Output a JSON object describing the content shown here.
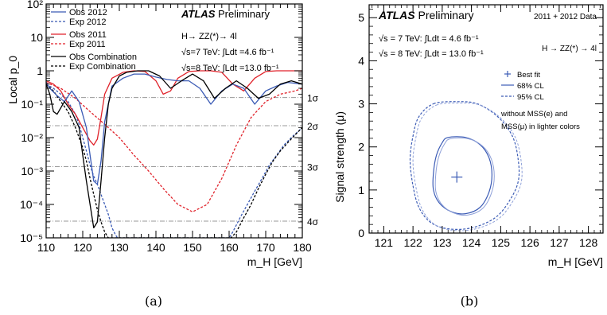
{
  "panels": [
    {
      "caption": "(a)",
      "title_bold": "ATLAS",
      "title_rest": " Preliminary",
      "channel": "H→ ZZ(*)→ 4l",
      "lumi": [
        "√s=7 TeV: ∫Ldt =4.6 fb⁻¹",
        "√s=8 TeV: ∫Ldt =13.0 fb⁻¹"
      ],
      "xlabel": "m_H [GeV]",
      "ylabel": "Local p_0",
      "xticks": [
        "110",
        "120",
        "130",
        "140",
        "150",
        "160",
        "170",
        "180"
      ],
      "yticks": [
        "10⁻⁵",
        "10⁻⁴",
        "10⁻³",
        "10⁻²",
        "10⁻¹",
        "1",
        "10",
        "10²"
      ],
      "sigma_labels": [
        "1σ",
        "2σ",
        "3σ",
        "4σ"
      ]
    },
    {
      "caption": "(b)",
      "title_bold": "ATLAS",
      "title_rest": " Preliminary",
      "dataset": "2011 + 2012 Data",
      "channel": "H → ZZ(*) → 4l",
      "lumi": [
        "√s = 7 TeV: ∫Ldt = 4.6 fb⁻¹",
        "√s = 8 TeV: ∫Ldt = 13.0 fb⁻¹"
      ],
      "xlabel": "m_H [GeV]",
      "ylabel": "Signal strength (μ)",
      "xticks": [
        "121",
        "122",
        "123",
        "124",
        "125",
        "126",
        "127",
        "128"
      ],
      "yticks": [
        "0",
        "1",
        "2",
        "3",
        "4",
        "5"
      ],
      "legend": [
        "Best fit",
        "68% CL",
        "95% CL"
      ],
      "note": [
        "without MSS(e) and",
        "MSS(μ) in lighter colors"
      ]
    }
  ],
  "chart_data": [
    {
      "type": "line",
      "x_range": [
        110,
        180
      ],
      "y_range": [
        1e-05,
        100
      ],
      "y_scale": "log",
      "legend_placement": "top-left",
      "colors": {
        "obs2012": "#3b5bb5",
        "obs2011": "#e0222a",
        "combination": "#000000",
        "grid": "#9a9a9a"
      },
      "sigma_levels": [
        0.1587,
        0.02275,
        0.00135,
        3.17e-05
      ],
      "series": [
        {
          "name": "Obs 2012",
          "style": "solid",
          "color": "#3b5bb5",
          "x": [
            110,
            111,
            113,
            115,
            117,
            119,
            121,
            122,
            123,
            124,
            125,
            126,
            128,
            131,
            134,
            137,
            140,
            143,
            146,
            149,
            152,
            155,
            158,
            161,
            164,
            167,
            170,
            173,
            176,
            180
          ],
          "y": [
            0.45,
            0.3,
            0.18,
            0.12,
            0.25,
            0.12,
            0.02,
            0.003,
            0.0005,
            0.0004,
            0.002,
            0.03,
            0.35,
            0.6,
            0.8,
            0.8,
            0.65,
            0.55,
            0.5,
            0.5,
            0.3,
            0.1,
            0.25,
            0.4,
            0.3,
            0.1,
            0.25,
            0.35,
            0.45,
            0.4
          ]
        },
        {
          "name": "Exp 2012",
          "style": "dashed",
          "color": "#3b5bb5",
          "x": [
            110,
            112,
            114,
            116,
            118,
            119,
            120,
            121,
            122,
            123,
            124,
            125,
            126,
            127,
            128,
            129,
            129.5,
            160,
            161,
            163,
            165,
            167,
            169,
            171,
            173,
            175,
            177,
            180
          ],
          "y": [
            0.4,
            0.3,
            0.2,
            0.12,
            0.05,
            0.025,
            0.01,
            0.004,
            0.0015,
            0.0007,
            0.0004,
            0.0002,
            0.0001,
            5e-05,
            2e-05,
            1.2e-05,
            1e-05,
            1e-05,
            1.5e-05,
            4e-05,
            0.0001,
            0.00025,
            0.0006,
            0.0015,
            0.003,
            0.006,
            0.01,
            0.02
          ]
        },
        {
          "name": "Obs 2011",
          "style": "solid",
          "color": "#e0222a",
          "x": [
            110,
            112,
            114,
            116,
            118,
            120,
            122,
            123,
            124,
            125,
            126,
            128,
            131,
            134,
            137,
            140,
            142,
            144,
            146,
            149,
            152,
            155,
            158,
            161,
            164,
            167,
            170,
            173,
            176,
            180
          ],
          "y": [
            0.5,
            0.4,
            0.25,
            0.1,
            0.05,
            0.02,
            0.008,
            0.006,
            0.009,
            0.04,
            0.2,
            0.6,
            0.9,
            1.0,
            0.95,
            0.5,
            0.2,
            0.25,
            0.6,
            0.95,
            1.0,
            1.0,
            0.9,
            0.4,
            0.25,
            0.6,
            0.95,
            1.0,
            1.0,
            1.0
          ]
        },
        {
          "name": "Exp 2011",
          "style": "dashed",
          "color": "#e0222a",
          "x": [
            110,
            114,
            118,
            122,
            126,
            130,
            134,
            138,
            142,
            146,
            150,
            154,
            158,
            162,
            166,
            170,
            174,
            178,
            180
          ],
          "y": [
            0.45,
            0.3,
            0.15,
            0.06,
            0.025,
            0.01,
            0.003,
            0.001,
            0.0003,
            0.0001,
            6e-05,
            0.0001,
            0.0006,
            0.006,
            0.04,
            0.12,
            0.2,
            0.25,
            0.3
          ]
        },
        {
          "name": "Obs Combination",
          "style": "solid",
          "color": "#000000",
          "x": [
            110,
            111,
            112,
            113,
            115,
            117,
            119,
            120,
            121,
            122,
            123,
            124,
            125,
            126,
            127,
            128,
            130,
            132,
            135,
            138,
            141,
            144,
            147,
            150,
            153,
            156,
            159,
            162,
            165,
            168,
            171,
            174,
            177,
            180
          ],
          "y": [
            0.4,
            0.2,
            0.06,
            0.05,
            0.12,
            0.06,
            0.02,
            0.003,
            0.0005,
            0.0001,
            2e-05,
            3e-05,
            0.0005,
            0.01,
            0.1,
            0.3,
            0.7,
            0.9,
            1.0,
            1.0,
            0.7,
            0.3,
            0.5,
            0.8,
            0.5,
            0.15,
            0.3,
            0.5,
            0.3,
            0.15,
            0.2,
            0.4,
            0.5,
            0.4
          ]
        },
        {
          "name": "Exp Combination",
          "style": "dashed",
          "color": "#000000",
          "x": [
            110,
            112,
            114,
            116,
            118,
            120,
            121,
            122,
            123,
            124,
            125,
            126,
            127,
            128,
            129,
            160.5,
            162,
            164,
            166,
            168,
            170,
            172,
            174,
            176,
            178,
            180
          ],
          "y": [
            0.4,
            0.25,
            0.12,
            0.06,
            0.02,
            0.005,
            0.002,
            0.0006,
            0.0002,
            7e-05,
            3e-05,
            1.5e-05,
            1e-05,
            1e-05,
            1e-05,
            1e-05,
            1.5e-05,
            4e-05,
            0.0001,
            0.0003,
            0.0008,
            0.002,
            0.004,
            0.007,
            0.012,
            0.02
          ]
        }
      ]
    },
    {
      "type": "scatter",
      "x_range": [
        120.5,
        128.5
      ],
      "y_range": [
        0,
        5.3
      ],
      "best_fit": {
        "x": 123.5,
        "y": 1.3,
        "color": "#3b5bb5"
      },
      "contours": [
        {
          "name": "68% CL",
          "style": "solid",
          "color": "#3b5bb5",
          "x": [
            123.2,
            123.8,
            124.3,
            124.6,
            124.7,
            124.6,
            124.3,
            123.8,
            123.3,
            122.9,
            122.7,
            122.7,
            122.8,
            123.0,
            123.2
          ],
          "y": [
            2.22,
            2.22,
            2.05,
            1.75,
            1.35,
            0.95,
            0.6,
            0.45,
            0.5,
            0.7,
            1.0,
            1.4,
            1.8,
            2.1,
            2.22
          ]
        },
        {
          "name": "95% CL",
          "style": "dashed",
          "color": "#3b5bb5",
          "x": [
            122.7,
            123.5,
            124.2,
            124.9,
            125.4,
            125.6,
            125.6,
            125.3,
            124.8,
            124.0,
            123.2,
            122.6,
            122.2,
            122.0,
            121.9,
            122.0,
            122.2,
            122.7
          ],
          "y": [
            3.0,
            3.05,
            3.0,
            2.7,
            2.25,
            1.7,
            1.2,
            0.75,
            0.35,
            0.12,
            0.1,
            0.25,
            0.6,
            1.1,
            1.7,
            2.25,
            2.7,
            3.0
          ]
        }
      ]
    }
  ]
}
